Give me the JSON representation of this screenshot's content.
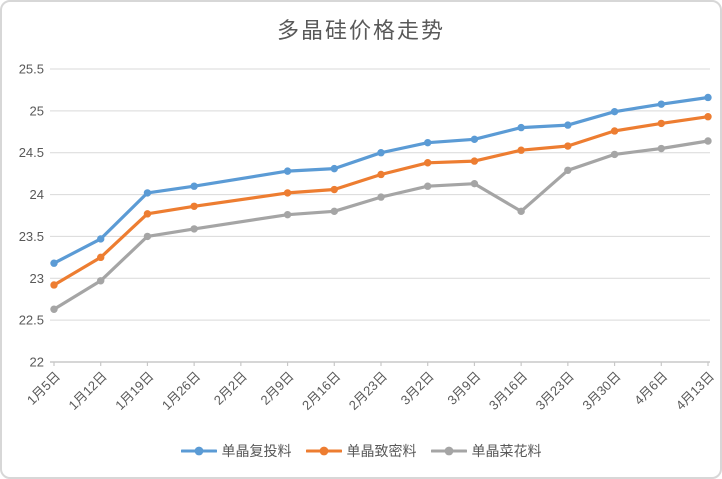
{
  "chart_data": {
    "type": "line",
    "title": "多晶硅价格走势",
    "categories": [
      "1月5日",
      "1月12日",
      "1月19日",
      "1月26日",
      "2月2日",
      "2月9日",
      "2月16日",
      "2月23日",
      "3月2日",
      "3月9日",
      "3月16日",
      "3月23日",
      "3月30日",
      "4月6日",
      "4月13日"
    ],
    "series": [
      {
        "name": "单晶复投料",
        "color": "#5B9BD5",
        "values": [
          23.18,
          23.47,
          24.02,
          24.1,
          null,
          24.28,
          24.31,
          24.5,
          24.62,
          24.66,
          24.8,
          24.83,
          24.99,
          25.08,
          25.16
        ]
      },
      {
        "name": "单晶致密料",
        "color": "#ED7D31",
        "values": [
          22.92,
          23.25,
          23.77,
          23.86,
          null,
          24.02,
          24.06,
          24.24,
          24.38,
          24.4,
          24.53,
          24.58,
          24.76,
          24.85,
          24.93
        ]
      },
      {
        "name": "单晶菜花料",
        "color": "#A5A5A5",
        "values": [
          22.63,
          22.97,
          23.5,
          23.59,
          null,
          23.76,
          23.8,
          23.97,
          24.1,
          24.13,
          23.8,
          24.29,
          24.48,
          24.55,
          24.64
        ]
      }
    ],
    "ylim": [
      22,
      25.5
    ],
    "y_ticks": [
      22,
      22.5,
      23,
      23.5,
      24,
      24.5,
      25,
      25.5
    ],
    "xlabel": "",
    "ylabel": "",
    "grid": true,
    "legend_position": "bottom",
    "x_label_rotation_deg": 45
  },
  "styles": {
    "text_color": "#595959",
    "gridline_color": "#d9d9d9",
    "axis_color": "#c8c8c8",
    "background": "#ffffff",
    "border_color": "#d7d7d7"
  }
}
